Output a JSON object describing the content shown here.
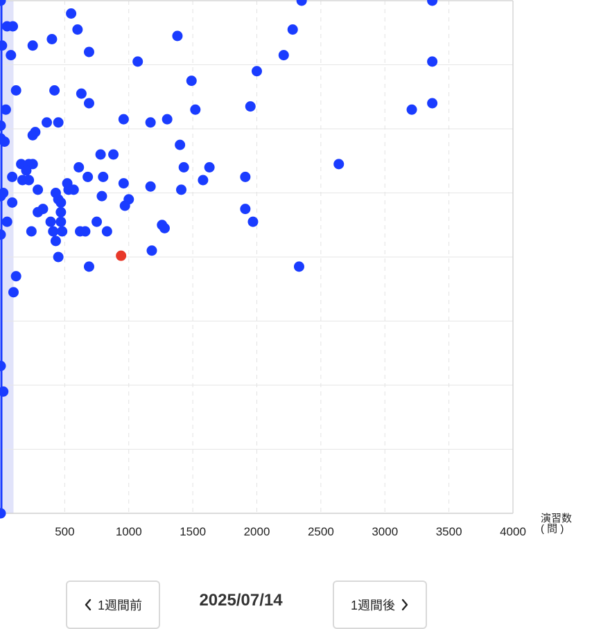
{
  "chart_data": {
    "type": "scatter",
    "xlabel": "演習数\n( 問 )",
    "xlim": [
      0,
      4000
    ],
    "ylim": [
      0,
      8
    ],
    "x_ticks": [
      "500",
      "1000",
      "1500",
      "2000",
      "2500",
      "3000",
      "3500",
      "4000"
    ],
    "grid": true,
    "highlight_band_x": [
      0,
      100
    ],
    "colors": {
      "point": "#1a3cff",
      "highlight_point": "#e8392a",
      "band": "#c9ccf5"
    },
    "points": [
      {
        "x": 0,
        "y": 8
      },
      {
        "x": 50,
        "y": 7.6
      },
      {
        "x": 95,
        "y": 7.6
      },
      {
        "x": 550,
        "y": 7.8
      },
      {
        "x": 600,
        "y": 7.55
      },
      {
        "x": 2350,
        "y": 8
      },
      {
        "x": 3370,
        "y": 8
      },
      {
        "x": 400,
        "y": 7.4
      },
      {
        "x": 1380,
        "y": 7.45
      },
      {
        "x": 2280,
        "y": 7.55
      },
      {
        "x": 10,
        "y": 7.3
      },
      {
        "x": 250,
        "y": 7.3
      },
      {
        "x": 690,
        "y": 7.2
      },
      {
        "x": 80,
        "y": 7.15
      },
      {
        "x": 1070,
        "y": 7.05
      },
      {
        "x": 2210,
        "y": 7.15
      },
      {
        "x": 3370,
        "y": 7.05
      },
      {
        "x": 2000,
        "y": 6.9
      },
      {
        "x": 1490,
        "y": 6.75
      },
      {
        "x": 120,
        "y": 6.6
      },
      {
        "x": 420,
        "y": 6.6
      },
      {
        "x": 630,
        "y": 6.55
      },
      {
        "x": 690,
        "y": 6.4
      },
      {
        "x": 3370,
        "y": 6.4
      },
      {
        "x": 3210,
        "y": 6.3
      },
      {
        "x": 1950,
        "y": 6.35
      },
      {
        "x": 1520,
        "y": 6.3
      },
      {
        "x": 40,
        "y": 6.3
      },
      {
        "x": 960,
        "y": 6.15
      },
      {
        "x": 1300,
        "y": 6.15
      },
      {
        "x": 1170,
        "y": 6.1
      },
      {
        "x": 360,
        "y": 6.1
      },
      {
        "x": 450,
        "y": 6.1
      },
      {
        "x": 0,
        "y": 6.05
      },
      {
        "x": 270,
        "y": 5.95
      },
      {
        "x": 250,
        "y": 5.9
      },
      {
        "x": 0,
        "y": 5.85
      },
      {
        "x": 30,
        "y": 5.8
      },
      {
        "x": 1400,
        "y": 5.75
      },
      {
        "x": 780,
        "y": 5.6
      },
      {
        "x": 880,
        "y": 5.6
      },
      {
        "x": 2640,
        "y": 5.45
      },
      {
        "x": 160,
        "y": 5.45
      },
      {
        "x": 220,
        "y": 5.45
      },
      {
        "x": 250,
        "y": 5.45
      },
      {
        "x": 200,
        "y": 5.35
      },
      {
        "x": 610,
        "y": 5.4
      },
      {
        "x": 1430,
        "y": 5.4
      },
      {
        "x": 1630,
        "y": 5.4
      },
      {
        "x": 90,
        "y": 5.25
      },
      {
        "x": 170,
        "y": 5.2
      },
      {
        "x": 220,
        "y": 5.2
      },
      {
        "x": 680,
        "y": 5.25
      },
      {
        "x": 800,
        "y": 5.25
      },
      {
        "x": 1580,
        "y": 5.2
      },
      {
        "x": 1910,
        "y": 5.25
      },
      {
        "x": 520,
        "y": 5.15
      },
      {
        "x": 960,
        "y": 5.15
      },
      {
        "x": 290,
        "y": 5.05
      },
      {
        "x": 530,
        "y": 5.05
      },
      {
        "x": 570,
        "y": 5.05
      },
      {
        "x": 1170,
        "y": 5.1
      },
      {
        "x": 1410,
        "y": 5.05
      },
      {
        "x": 20,
        "y": 5.0
      },
      {
        "x": 430,
        "y": 5.0
      },
      {
        "x": 0,
        "y": 4.95
      },
      {
        "x": 790,
        "y": 4.95
      },
      {
        "x": 450,
        "y": 4.9
      },
      {
        "x": 470,
        "y": 4.85
      },
      {
        "x": 90,
        "y": 4.85
      },
      {
        "x": 1000,
        "y": 4.9
      },
      {
        "x": 970,
        "y": 4.8
      },
      {
        "x": 330,
        "y": 4.75
      },
      {
        "x": 470,
        "y": 4.7
      },
      {
        "x": 290,
        "y": 4.7
      },
      {
        "x": 1910,
        "y": 4.75
      },
      {
        "x": 50,
        "y": 4.55
      },
      {
        "x": 390,
        "y": 4.55
      },
      {
        "x": 470,
        "y": 4.55
      },
      {
        "x": 750,
        "y": 4.55
      },
      {
        "x": 1970,
        "y": 4.55
      },
      {
        "x": 1260,
        "y": 4.5
      },
      {
        "x": 1280,
        "y": 4.45
      },
      {
        "x": 240,
        "y": 4.4
      },
      {
        "x": 410,
        "y": 4.4
      },
      {
        "x": 480,
        "y": 4.4
      },
      {
        "x": 620,
        "y": 4.4
      },
      {
        "x": 660,
        "y": 4.4
      },
      {
        "x": 830,
        "y": 4.4
      },
      {
        "x": 0,
        "y": 4.35
      },
      {
        "x": 430,
        "y": 4.25
      },
      {
        "x": 1180,
        "y": 4.1
      },
      {
        "x": 450,
        "y": 4.0
      },
      {
        "x": 690,
        "y": 3.85
      },
      {
        "x": 2330,
        "y": 3.85
      },
      {
        "x": 120,
        "y": 3.7
      },
      {
        "x": 100,
        "y": 3.45
      },
      {
        "x": 0,
        "y": 2.3
      },
      {
        "x": 20,
        "y": 1.9
      },
      {
        "x": 0,
        "y": 0
      }
    ],
    "highlight": {
      "x": 940,
      "y": 4.02
    }
  },
  "nav": {
    "prev_label": "1週間前",
    "next_label": "1週間後",
    "current_date": "2025/07/14"
  }
}
